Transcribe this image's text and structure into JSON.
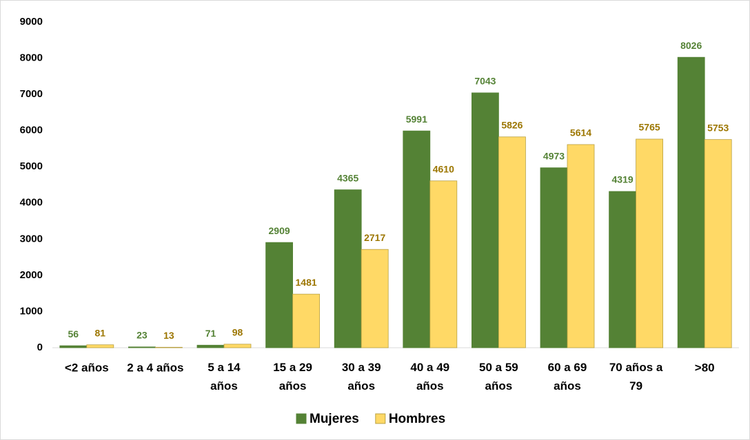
{
  "chart_data": {
    "type": "bar",
    "categories": [
      "<2 años",
      "2 a 4 años",
      "5 a 14 años",
      "15 a 29 años",
      "30 a 39 años",
      "40 a 49 años",
      "50 a 59 años",
      "60 a 69 años",
      "70 años a 79",
      ">80"
    ],
    "series": [
      {
        "name": "Mujeres",
        "color": "#548235",
        "label_color": "#548235",
        "values": [
          56,
          23,
          71,
          2909,
          4365,
          5991,
          7043,
          4973,
          4319,
          8026
        ]
      },
      {
        "name": "Hombres",
        "color": "#ffd966",
        "label_color": "#9c7600",
        "values": [
          81,
          13,
          98,
          1481,
          2717,
          4610,
          5826,
          5614,
          5765,
          5753
        ]
      }
    ],
    "ylim": [
      0,
      9000
    ],
    "yticks": [
      0,
      1000,
      2000,
      3000,
      4000,
      5000,
      6000,
      7000,
      8000,
      9000
    ],
    "legend": "bottom"
  }
}
